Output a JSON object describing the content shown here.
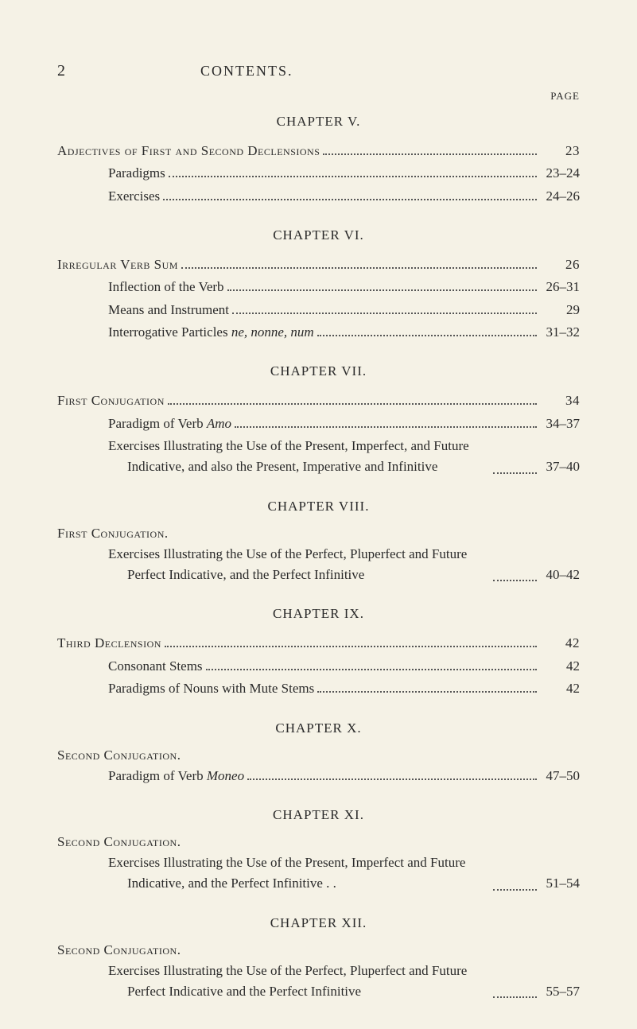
{
  "page_number": "2",
  "running_head": "CONTENTS.",
  "page_label": "PAGE",
  "chapters": [
    {
      "heading": "CHAPTER V.",
      "section_title": null,
      "entries": [
        {
          "type": "main",
          "label": "Adjectives of First and Second Declensions",
          "page": "23"
        },
        {
          "type": "sub",
          "label": "Paradigms",
          "page": "23–24"
        },
        {
          "type": "sub",
          "label": "Exercises",
          "page": "24–26"
        }
      ]
    },
    {
      "heading": "CHAPTER VI.",
      "section_title": null,
      "entries": [
        {
          "type": "main",
          "label": "Irregular Verb Sum",
          "page": "26"
        },
        {
          "type": "sub",
          "label": "Inflection of the Verb",
          "page": "26–31"
        },
        {
          "type": "sub",
          "label": "Means and Instrument",
          "page": "29"
        },
        {
          "type": "sub",
          "label": "Interrogative Particles ne, nonne, num",
          "italic_part": "ne, nonne, num",
          "page": "31–32"
        }
      ]
    },
    {
      "heading": "CHAPTER VII.",
      "section_title": null,
      "entries": [
        {
          "type": "main",
          "label": "First Conjugation",
          "page": "34"
        },
        {
          "type": "sub",
          "label": "Paradigm of Verb Amo",
          "italic_part": "Amo",
          "page": "34–37"
        },
        {
          "type": "multi",
          "label": "Exercises Illustrating the Use of the Present, Imperfect, and Future Indicative, and also the Present, Imperative and Infinitive",
          "page": "37–40"
        }
      ]
    },
    {
      "heading": "CHAPTER VIII.",
      "section_title": "First Conjugation.",
      "entries": [
        {
          "type": "multi",
          "label": "Exercises Illustrating the Use of the Perfect, Pluperfect and Future Perfect Indicative, and the Perfect Infinitive",
          "page": "40–42"
        }
      ]
    },
    {
      "heading": "CHAPTER IX.",
      "section_title": null,
      "entries": [
        {
          "type": "main",
          "label": "Third Declension",
          "page": "42"
        },
        {
          "type": "sub",
          "label": "Consonant Stems",
          "page": "42"
        },
        {
          "type": "sub",
          "label": "Paradigms of Nouns with Mute Stems",
          "page": "42"
        }
      ]
    },
    {
      "heading": "CHAPTER X.",
      "section_title": "Second Conjugation.",
      "entries": [
        {
          "type": "sub",
          "label": "Paradigm of Verb Moneo",
          "italic_part": "Moneo",
          "page": "47–50"
        }
      ]
    },
    {
      "heading": "CHAPTER XI.",
      "section_title": "Second Conjugation.",
      "entries": [
        {
          "type": "multi",
          "label": "Exercises Illustrating the Use of the Present, Imperfect and Future Indicative, and the Perfect Infinitive . .",
          "page": "51–54"
        }
      ]
    },
    {
      "heading": "CHAPTER XII.",
      "section_title": "Second Conjugation.",
      "entries": [
        {
          "type": "multi",
          "label": "Exercises Illustrating the Use of the Perfect, Pluperfect and Future Perfect Indicative and the Perfect Infinitive",
          "page": "55–57"
        }
      ]
    }
  ],
  "colors": {
    "background": "#f5f2e6",
    "text": "#2a2a2a"
  },
  "typography": {
    "body_font": "Times New Roman",
    "body_size_pt": 12,
    "heading_size_pt": 12,
    "page_number_size_pt": 14
  }
}
